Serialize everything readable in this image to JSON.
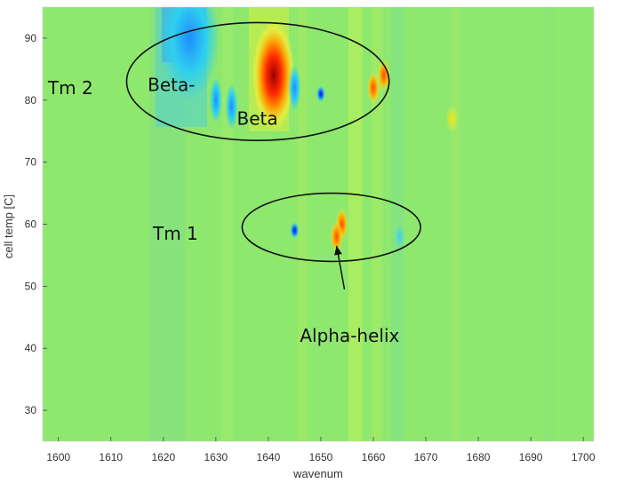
{
  "chart_data": {
    "type": "heatmap",
    "title": "",
    "xlabel": "wavenum",
    "ylabel": "cell temp [C]",
    "xlim": [
      1597,
      1702
    ],
    "ylim": [
      25,
      95
    ],
    "x_ticks": [
      1600,
      1610,
      1620,
      1630,
      1640,
      1650,
      1660,
      1670,
      1680,
      1690,
      1700
    ],
    "y_ticks": [
      30,
      40,
      50,
      60,
      70,
      80,
      90
    ],
    "colormap": "jet",
    "background_color": "#8ee86e",
    "grid": false,
    "features": [
      {
        "x": 1641,
        "y": 84,
        "value": 1.0
      },
      {
        "x": 1625,
        "y": 90,
        "value": -0.6
      },
      {
        "x": 1630,
        "y": 80,
        "value": -0.5
      },
      {
        "x": 1633,
        "y": 79,
        "value": -0.7
      },
      {
        "x": 1645,
        "y": 82,
        "value": -0.6
      },
      {
        "x": 1650,
        "y": 81,
        "value": -0.8
      },
      {
        "x": 1660,
        "y": 82,
        "value": 0.7
      },
      {
        "x": 1662,
        "y": 84,
        "value": 0.6
      },
      {
        "x": 1675,
        "y": 77,
        "value": 0.3
      },
      {
        "x": 1645,
        "y": 59,
        "value": -0.9
      },
      {
        "x": 1654,
        "y": 60,
        "value": 0.6
      },
      {
        "x": 1653,
        "y": 58,
        "value": 0.5
      },
      {
        "x": 1665,
        "y": 58,
        "value": -0.3
      }
    ],
    "annotations": [
      {
        "text": "Tm 2",
        "x": 1598,
        "y": 82
      },
      {
        "text": "Beta-",
        "x": 1617,
        "y": 82.5
      },
      {
        "text": "Beta",
        "x": 1634,
        "y": 77
      },
      {
        "text": "Tm 1",
        "x": 1618,
        "y": 58.5
      },
      {
        "text": "Alpha-helix",
        "x": 1646,
        "y": 42
      }
    ],
    "ellipses": [
      {
        "cx": 1638,
        "cy": 83,
        "rx": 25,
        "ry": 9.5
      },
      {
        "cx": 1652,
        "cy": 59.5,
        "rx": 17,
        "ry": 5.5
      }
    ],
    "arrows": [
      {
        "from": [
          1654.5,
          49.5
        ],
        "to": [
          1653,
          56.5
        ]
      }
    ]
  }
}
